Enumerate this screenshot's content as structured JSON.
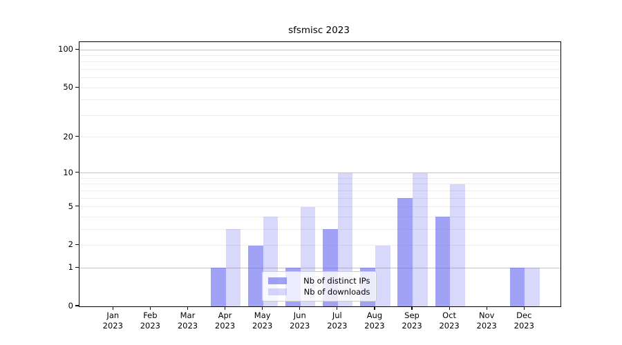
{
  "figure": {
    "background": "#ffffff"
  },
  "chart_data": {
    "type": "bar",
    "title": "sfsmisc 2023",
    "categories": [
      "Jan",
      "Feb",
      "Mar",
      "Apr",
      "May",
      "Jun",
      "Jul",
      "Aug",
      "Sep",
      "Oct",
      "Nov",
      "Dec"
    ],
    "year_label": "2023",
    "series": [
      {
        "name": "Nb of distinct IPs",
        "values": [
          0,
          0,
          0,
          1,
          2,
          1,
          3,
          1,
          6,
          4,
          0,
          1
        ],
        "color": "rgba(99,99,238,0.60)"
      },
      {
        "name": "Nb of downloads",
        "values": [
          0,
          0,
          0,
          3,
          4,
          5,
          10,
          2,
          10,
          8,
          0,
          1
        ],
        "color": "rgba(99,99,238,0.25)"
      }
    ],
    "yscale": "log1p",
    "yticks": [
      0,
      1,
      2,
      5,
      10,
      20,
      50,
      100
    ],
    "minor_gridline_values": [
      2,
      3,
      4,
      5,
      6,
      7,
      8,
      9,
      20,
      30,
      40,
      50,
      60,
      70,
      80,
      90
    ],
    "major_gridline_values": [
      1,
      10,
      100
    ],
    "ylim": [
      0,
      115
    ],
    "grid": true,
    "legend_position": "lower center inside",
    "colors": {
      "major_grid": "#c3c3c3",
      "minor_grid": "#ededed",
      "axis": "#000000",
      "background": "#ffffff"
    }
  }
}
